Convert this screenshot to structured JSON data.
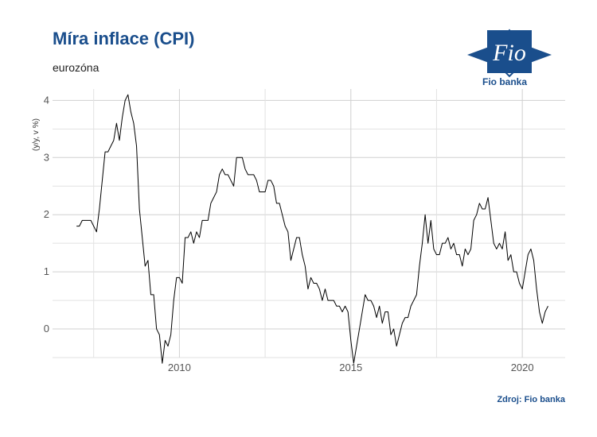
{
  "header": {
    "title": "Míra inflace (CPI)",
    "subtitle": "eurozóna"
  },
  "logo": {
    "text": "Fio banka",
    "mark": "Fio",
    "icon": "fio-diamond-logo",
    "color": "#1a4e8c"
  },
  "footer": {
    "source": "Zdroj: Fio banka"
  },
  "chart_data": {
    "type": "line",
    "ylabel": "(y/y, v %)",
    "xlabel": "",
    "ylim": [
      -0.5,
      4.2
    ],
    "y_ticks": [
      0,
      1,
      2,
      3,
      4
    ],
    "x_ticks": [
      2010,
      2015,
      2020
    ],
    "grid": true,
    "line_color": "#000000",
    "x_start": 2007.0,
    "x_step": 0.0833333,
    "series": [
      {
        "values": [
          1.8,
          1.8,
          1.9,
          1.9,
          1.9,
          1.9,
          1.8,
          1.7,
          2.1,
          2.6,
          3.1,
          3.1,
          3.2,
          3.3,
          3.6,
          3.3,
          3.7,
          4.0,
          4.1,
          3.8,
          3.6,
          3.2,
          2.1,
          1.6,
          1.1,
          1.2,
          0.6,
          0.6,
          0.0,
          -0.1,
          -0.6,
          -0.2,
          -0.3,
          -0.1,
          0.5,
          0.9,
          0.9,
          0.8,
          1.6,
          1.6,
          1.7,
          1.5,
          1.7,
          1.6,
          1.9,
          1.9,
          1.9,
          2.2,
          2.3,
          2.4,
          2.7,
          2.8,
          2.7,
          2.7,
          2.6,
          2.5,
          3.0,
          3.0,
          3.0,
          2.8,
          2.7,
          2.7,
          2.7,
          2.6,
          2.4,
          2.4,
          2.4,
          2.6,
          2.6,
          2.5,
          2.2,
          2.2,
          2.0,
          1.8,
          1.7,
          1.2,
          1.4,
          1.6,
          1.6,
          1.3,
          1.1,
          0.7,
          0.9,
          0.8,
          0.8,
          0.7,
          0.5,
          0.7,
          0.5,
          0.5,
          0.5,
          0.4,
          0.4,
          0.3,
          0.4,
          0.3,
          -0.2,
          -0.6,
          -0.3,
          0.0,
          0.3,
          0.6,
          0.5,
          0.5,
          0.4,
          0.2,
          0.4,
          0.1,
          0.3,
          0.3,
          -0.1,
          0.0,
          -0.3,
          -0.1,
          0.1,
          0.2,
          0.2,
          0.4,
          0.5,
          0.6,
          1.1,
          1.5,
          2.0,
          1.5,
          1.9,
          1.4,
          1.3,
          1.3,
          1.5,
          1.5,
          1.6,
          1.4,
          1.5,
          1.3,
          1.3,
          1.1,
          1.4,
          1.3,
          1.4,
          1.9,
          2.0,
          2.2,
          2.1,
          2.1,
          2.3,
          1.9,
          1.5,
          1.4,
          1.5,
          1.4,
          1.7,
          1.2,
          1.3,
          1.0,
          1.0,
          0.8,
          0.7,
          1.0,
          1.3,
          1.4,
          1.2,
          0.7,
          0.3,
          0.1,
          0.3,
          0.4
        ]
      }
    ]
  }
}
